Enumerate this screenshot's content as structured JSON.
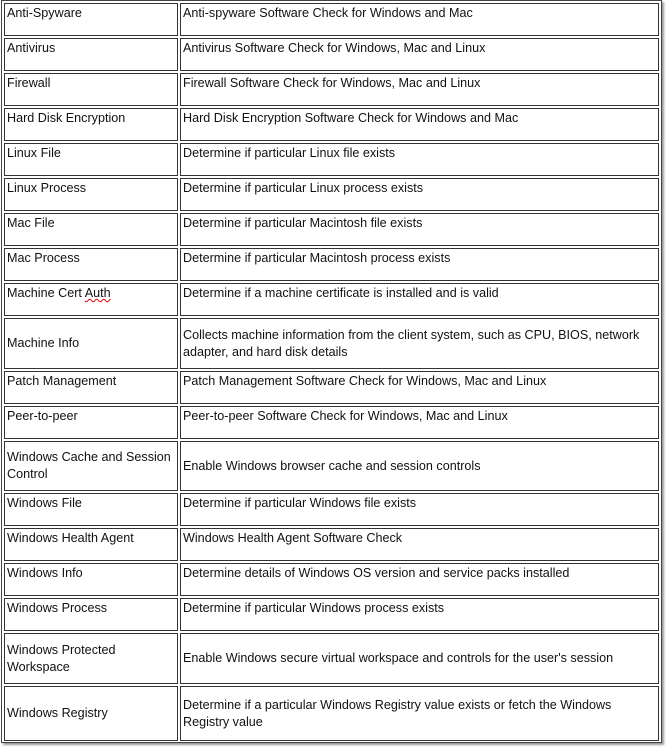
{
  "rows": [
    {
      "name": "Anti-Spyware",
      "desc": "Anti-spyware Software Check for Windows and Mac"
    },
    {
      "name": "Antivirus",
      "desc": "Antivirus Software Check for Windows, Mac and Linux"
    },
    {
      "name": "Firewall",
      "desc": "Firewall Software Check for Windows, Mac and Linux"
    },
    {
      "name": "Hard Disk Encryption",
      "desc": "Hard Disk Encryption Software Check for Windows and Mac"
    },
    {
      "name": "Linux File",
      "desc": "Determine if particular Linux file exists"
    },
    {
      "name": "Linux Process",
      "desc": "Determine if particular Linux process exists"
    },
    {
      "name": "Mac File",
      "desc": "Determine if particular Macintosh file exists"
    },
    {
      "name": "Mac Process",
      "desc": "Determine if particular Macintosh process exists"
    },
    {
      "name": "Machine Cert Auth",
      "desc": "Determine if a machine certificate is installed and is valid"
    },
    {
      "name": "Machine Info",
      "desc": "Collects machine information from the client system, such as CPU, BIOS, network adapter, and hard disk details"
    },
    {
      "name": "Patch Management",
      "desc": "Patch Management Software Check for Windows, Mac and Linux"
    },
    {
      "name": "Peer-to-peer",
      "desc": "Peer-to-peer Software Check for Windows, Mac and Linux"
    },
    {
      "name": "Windows Cache and Session Control",
      "desc": "Enable Windows browser cache and session controls"
    },
    {
      "name": "Windows File",
      "desc": "Determine if particular Windows file exists"
    },
    {
      "name": "Windows Health Agent",
      "desc": "Windows Health Agent Software Check"
    },
    {
      "name": "Windows Info",
      "desc": "Determine details of Windows OS version and service packs installed"
    },
    {
      "name": "Windows Process",
      "desc": "Determine if particular Windows process exists"
    },
    {
      "name": "Windows Protected Workspace",
      "desc": "Enable Windows secure virtual workspace and controls for the user's session"
    },
    {
      "name": "Windows Registry",
      "desc": "Determine if a particular Windows Registry value exists or fetch the Windows Registry value"
    }
  ]
}
